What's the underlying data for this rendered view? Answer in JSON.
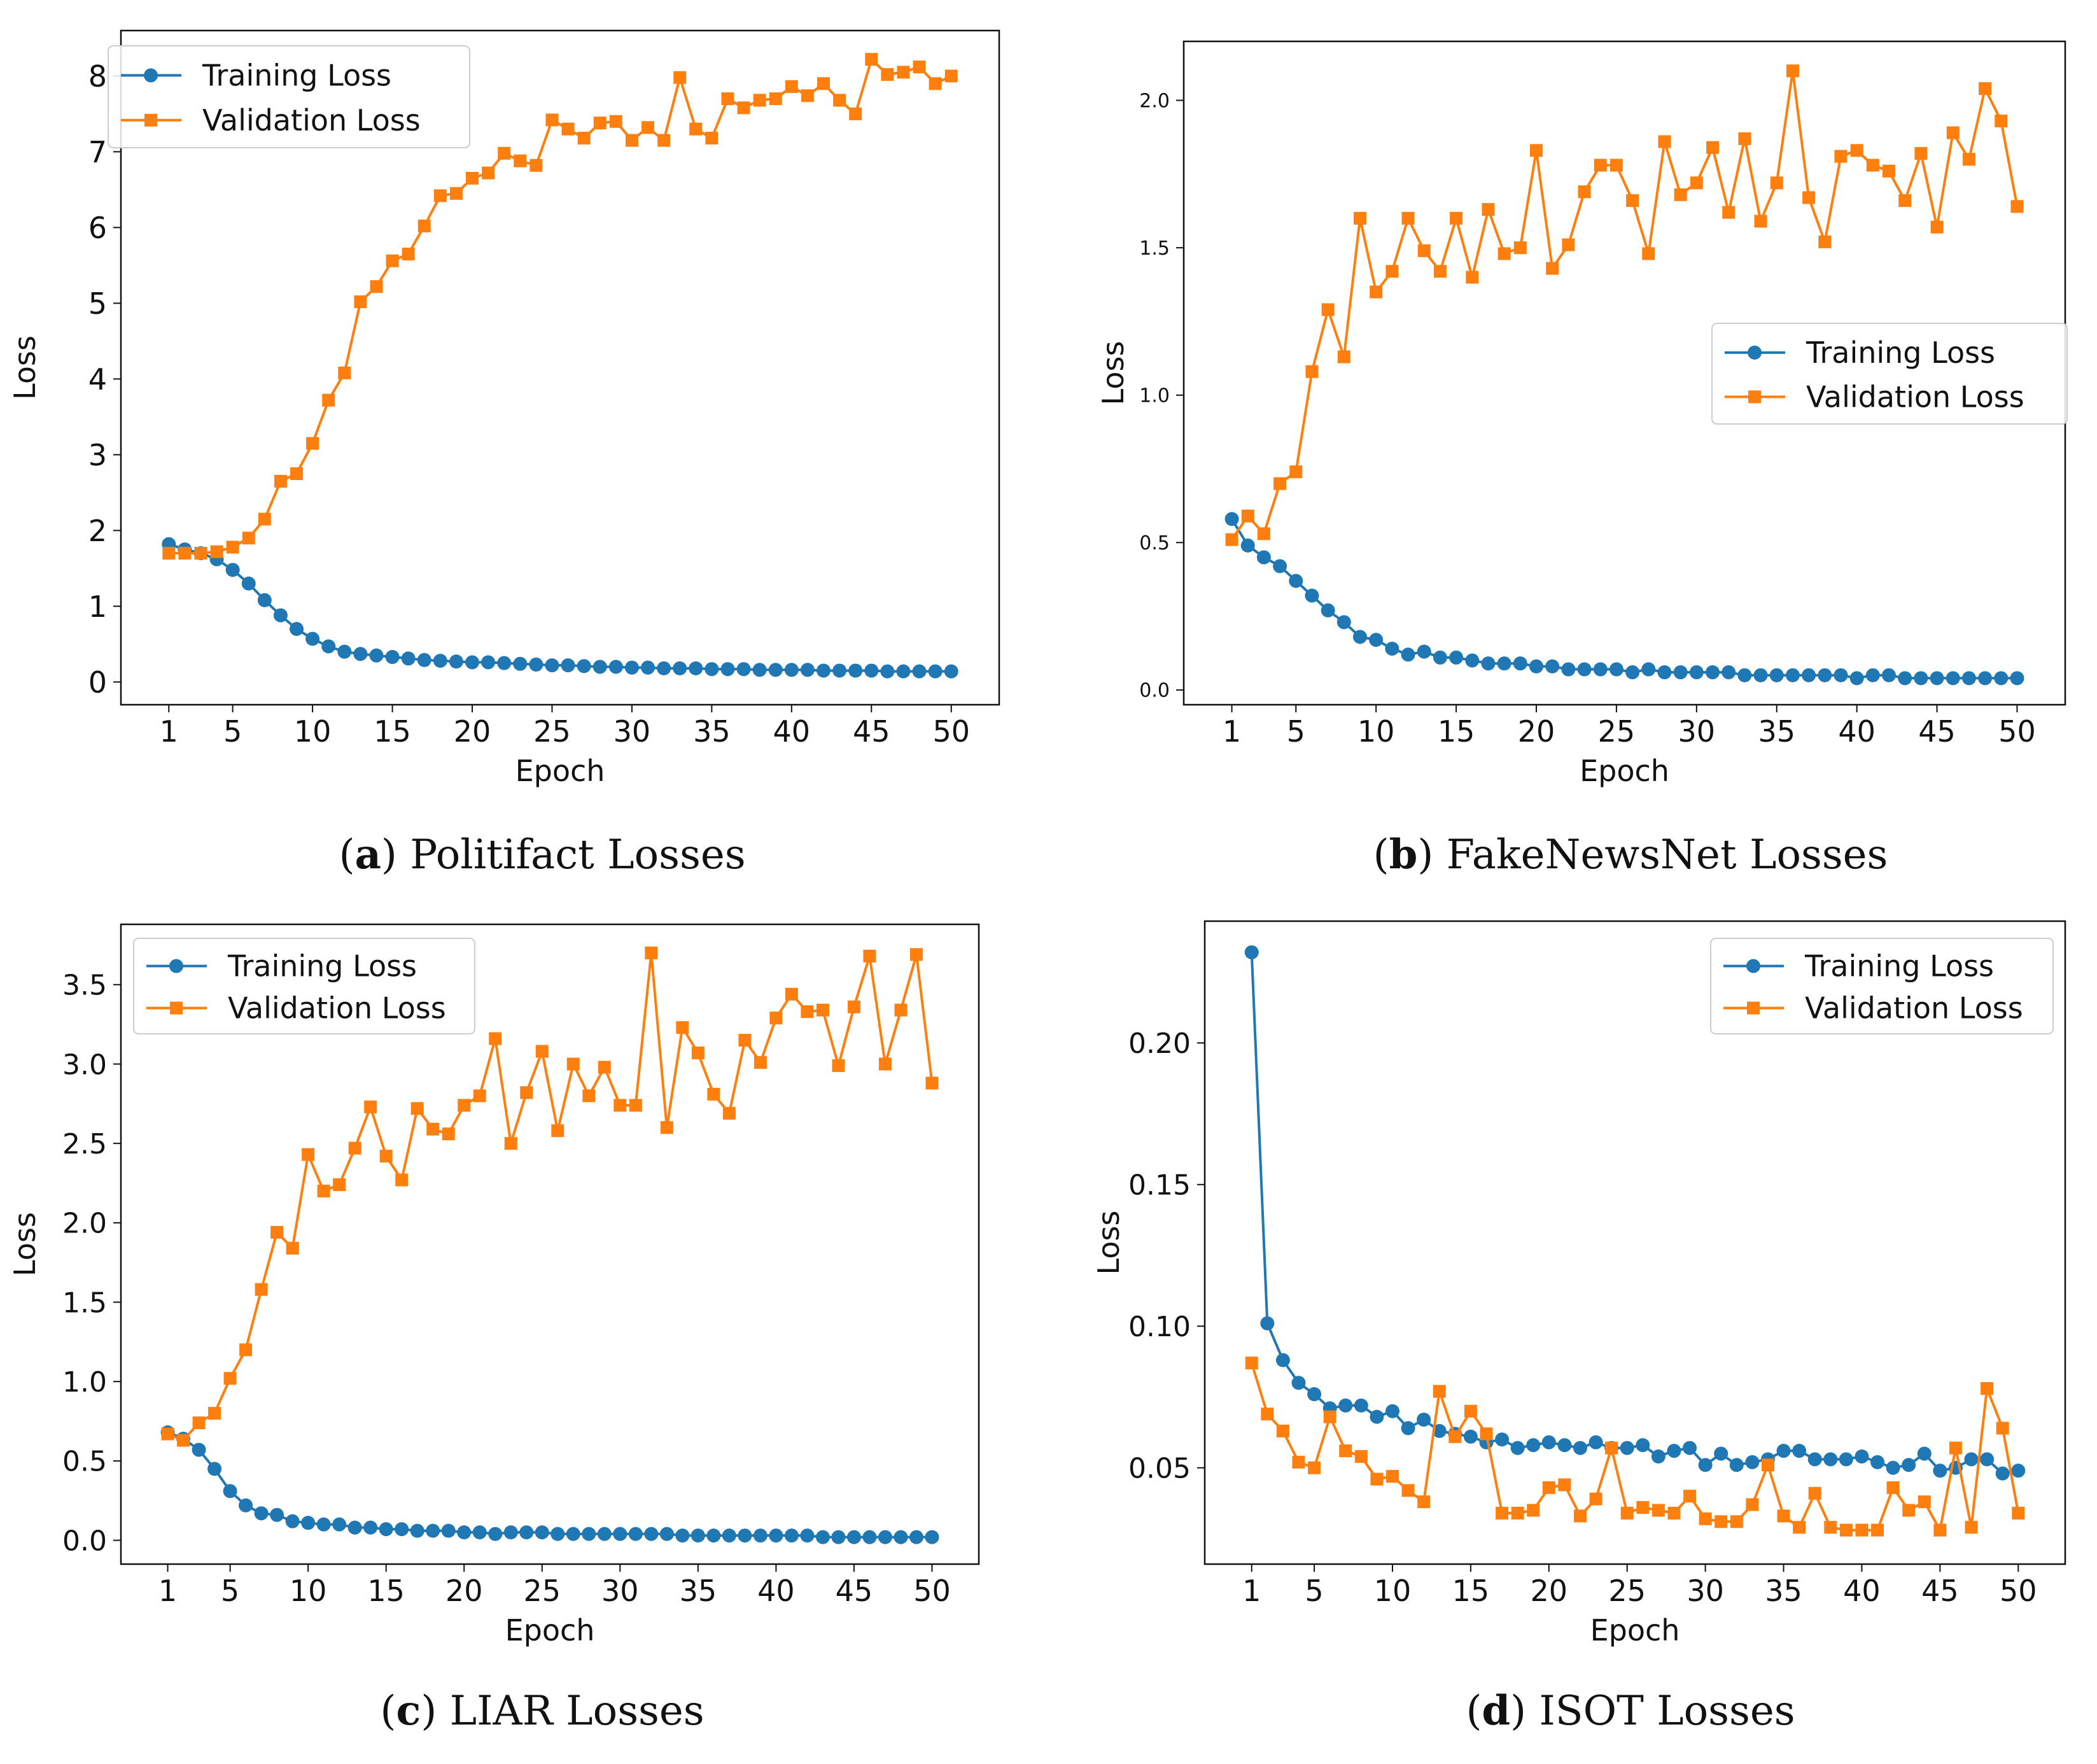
{
  "colors": {
    "training": "#1f77b4",
    "validation": "#ff7f0e"
  },
  "chart_data": [
    {
      "type": "line",
      "panel_letter": "a",
      "caption_text": "Politifact Losses",
      "xlabel": "Epoch",
      "ylabel": "Loss",
      "xlim": [
        -2,
        53
      ],
      "ylim": [
        -0.3,
        8.6
      ],
      "xticks": [
        1,
        5,
        10,
        15,
        20,
        25,
        30,
        35,
        40,
        45,
        50
      ],
      "yticks": [
        0,
        1,
        2,
        3,
        4,
        5,
        6,
        7,
        8
      ],
      "ytick_labels": [
        "0",
        "1",
        "2",
        "3",
        "4",
        "5",
        "6",
        "7",
        "8"
      ],
      "tick_font": 46,
      "legend": "upper-left",
      "series": [
        {
          "name": "Training Loss",
          "marker": "circle",
          "values": [
            1.82,
            1.75,
            1.7,
            1.62,
            1.48,
            1.3,
            1.08,
            0.88,
            0.7,
            0.57,
            0.47,
            0.4,
            0.37,
            0.35,
            0.33,
            0.31,
            0.29,
            0.28,
            0.27,
            0.26,
            0.26,
            0.25,
            0.24,
            0.23,
            0.22,
            0.22,
            0.21,
            0.2,
            0.2,
            0.19,
            0.19,
            0.18,
            0.18,
            0.18,
            0.17,
            0.17,
            0.17,
            0.16,
            0.16,
            0.16,
            0.16,
            0.15,
            0.15,
            0.15,
            0.15,
            0.14,
            0.14,
            0.14,
            0.14,
            0.14
          ]
        },
        {
          "name": "Validation Loss",
          "marker": "square",
          "values": [
            1.7,
            1.7,
            1.7,
            1.72,
            1.78,
            1.9,
            2.15,
            2.65,
            2.75,
            3.15,
            3.72,
            4.08,
            5.02,
            5.22,
            5.56,
            5.65,
            6.02,
            6.42,
            6.45,
            6.65,
            6.72,
            6.98,
            6.88,
            6.82,
            7.42,
            7.3,
            7.18,
            7.38,
            7.4,
            7.15,
            7.32,
            7.15,
            7.98,
            7.3,
            7.18,
            7.7,
            7.58,
            7.68,
            7.7,
            7.86,
            7.74,
            7.9,
            7.68,
            7.5,
            8.22,
            8.02,
            8.05,
            8.12,
            7.9,
            8.0
          ]
        }
      ]
    },
    {
      "type": "line",
      "panel_letter": "b",
      "caption_text": "FakeNewsNet Losses",
      "xlabel": "Epoch",
      "ylabel": "Loss",
      "xlim": [
        -2,
        53
      ],
      "ylim": [
        -0.05,
        2.2
      ],
      "xticks": [
        1,
        5,
        10,
        15,
        20,
        25,
        30,
        35,
        40,
        45,
        50
      ],
      "yticks": [
        0,
        0.5,
        1.0,
        1.5,
        2.0
      ],
      "ytick_labels": [
        "0.0",
        "0.5",
        "1.0",
        "1.5",
        "2.0"
      ],
      "tick_font": 30,
      "legend": "center-right",
      "series": [
        {
          "name": "Training Loss",
          "marker": "circle",
          "values": [
            0.58,
            0.49,
            0.45,
            0.42,
            0.37,
            0.32,
            0.27,
            0.23,
            0.18,
            0.17,
            0.14,
            0.12,
            0.13,
            0.11,
            0.11,
            0.1,
            0.09,
            0.09,
            0.09,
            0.08,
            0.08,
            0.07,
            0.07,
            0.07,
            0.07,
            0.06,
            0.07,
            0.06,
            0.06,
            0.06,
            0.06,
            0.06,
            0.05,
            0.05,
            0.05,
            0.05,
            0.05,
            0.05,
            0.05,
            0.04,
            0.05,
            0.05,
            0.04,
            0.04,
            0.04,
            0.04,
            0.04,
            0.04,
            0.04,
            0.04
          ]
        },
        {
          "name": "Validation Loss",
          "marker": "square",
          "values": [
            0.51,
            0.59,
            0.53,
            0.7,
            0.74,
            1.08,
            1.29,
            1.13,
            1.6,
            1.35,
            1.42,
            1.6,
            1.49,
            1.42,
            1.6,
            1.4,
            1.63,
            1.48,
            1.5,
            1.83,
            1.43,
            1.51,
            1.69,
            1.78,
            1.78,
            1.66,
            1.48,
            1.86,
            1.68,
            1.72,
            1.84,
            1.62,
            1.87,
            1.59,
            1.72,
            2.1,
            1.67,
            1.52,
            1.81,
            1.83,
            1.78,
            1.76,
            1.66,
            1.82,
            1.57,
            1.89,
            1.8,
            2.04,
            1.93,
            1.64
          ]
        }
      ]
    },
    {
      "type": "line",
      "panel_letter": "c",
      "caption_text": "LIAR Losses",
      "xlabel": "Epoch",
      "ylabel": "Loss",
      "xlim": [
        -2,
        53
      ],
      "ylim": [
        -0.15,
        3.88
      ],
      "xticks": [
        1,
        5,
        10,
        15,
        20,
        25,
        30,
        35,
        40,
        45,
        50
      ],
      "yticks": [
        0,
        0.5,
        1.0,
        1.5,
        2.0,
        2.5,
        3.0,
        3.5
      ],
      "ytick_labels": [
        "0.0",
        "0.5",
        "1.0",
        "1.5",
        "2.0",
        "2.5",
        "3.0",
        "3.5"
      ],
      "tick_font": 44,
      "legend": "upper-left",
      "series": [
        {
          "name": "Training Loss",
          "marker": "circle",
          "values": [
            0.68,
            0.64,
            0.57,
            0.45,
            0.31,
            0.22,
            0.17,
            0.16,
            0.12,
            0.11,
            0.1,
            0.1,
            0.08,
            0.08,
            0.07,
            0.07,
            0.06,
            0.06,
            0.06,
            0.05,
            0.05,
            0.04,
            0.05,
            0.05,
            0.05,
            0.04,
            0.04,
            0.04,
            0.04,
            0.04,
            0.04,
            0.04,
            0.04,
            0.03,
            0.03,
            0.03,
            0.03,
            0.03,
            0.03,
            0.03,
            0.03,
            0.03,
            0.02,
            0.02,
            0.02,
            0.02,
            0.02,
            0.02,
            0.02,
            0.02
          ]
        },
        {
          "name": "Validation Loss",
          "marker": "square",
          "values": [
            0.67,
            0.63,
            0.74,
            0.8,
            1.02,
            1.2,
            1.58,
            1.94,
            1.84,
            2.43,
            2.2,
            2.24,
            2.47,
            2.73,
            2.42,
            2.27,
            2.72,
            2.59,
            2.56,
            2.74,
            2.8,
            3.16,
            2.5,
            2.82,
            3.08,
            2.58,
            3.0,
            2.8,
            2.98,
            2.74,
            2.74,
            3.7,
            2.6,
            3.23,
            3.07,
            2.81,
            2.69,
            3.15,
            3.01,
            3.29,
            3.44,
            3.33,
            3.34,
            2.99,
            3.36,
            3.68,
            3.0,
            3.34,
            3.69,
            2.88
          ]
        }
      ]
    },
    {
      "type": "line",
      "panel_letter": "d",
      "caption_text": "ISOT Losses",
      "xlabel": "Epoch",
      "ylabel": "Loss",
      "xlim": [
        -2,
        53
      ],
      "ylim": [
        0.016,
        0.243
      ],
      "xticks": [
        1,
        5,
        10,
        15,
        20,
        25,
        30,
        35,
        40,
        45,
        50
      ],
      "yticks": [
        0.05,
        0.1,
        0.15,
        0.2
      ],
      "ytick_labels": [
        "0.05",
        "0.10",
        "0.15",
        "0.20"
      ],
      "tick_font": 44,
      "legend": "upper-right",
      "series": [
        {
          "name": "Training Loss",
          "marker": "circle",
          "values": [
            0.232,
            0.101,
            0.088,
            0.08,
            0.076,
            0.071,
            0.072,
            0.072,
            0.068,
            0.07,
            0.064,
            0.067,
            0.063,
            0.062,
            0.061,
            0.059,
            0.06,
            0.057,
            0.058,
            0.059,
            0.058,
            0.057,
            0.059,
            0.057,
            0.057,
            0.058,
            0.054,
            0.056,
            0.057,
            0.051,
            0.055,
            0.051,
            0.052,
            0.053,
            0.056,
            0.056,
            0.053,
            0.053,
            0.053,
            0.054,
            0.052,
            0.05,
            0.051,
            0.055,
            0.049,
            0.05,
            0.053,
            0.053,
            0.048,
            0.049
          ]
        },
        {
          "name": "Validation Loss",
          "marker": "square",
          "values": [
            0.087,
            0.069,
            0.063,
            0.052,
            0.05,
            0.068,
            0.056,
            0.054,
            0.046,
            0.047,
            0.042,
            0.038,
            0.077,
            0.061,
            0.07,
            0.062,
            0.034,
            0.034,
            0.035,
            0.043,
            0.044,
            0.033,
            0.039,
            0.057,
            0.034,
            0.036,
            0.035,
            0.034,
            0.04,
            0.032,
            0.031,
            0.031,
            0.037,
            0.051,
            0.033,
            0.029,
            0.041,
            0.029,
            0.028,
            0.028,
            0.028,
            0.043,
            0.035,
            0.038,
            0.028,
            0.057,
            0.029,
            0.078,
            0.064,
            0.034
          ]
        }
      ]
    }
  ]
}
